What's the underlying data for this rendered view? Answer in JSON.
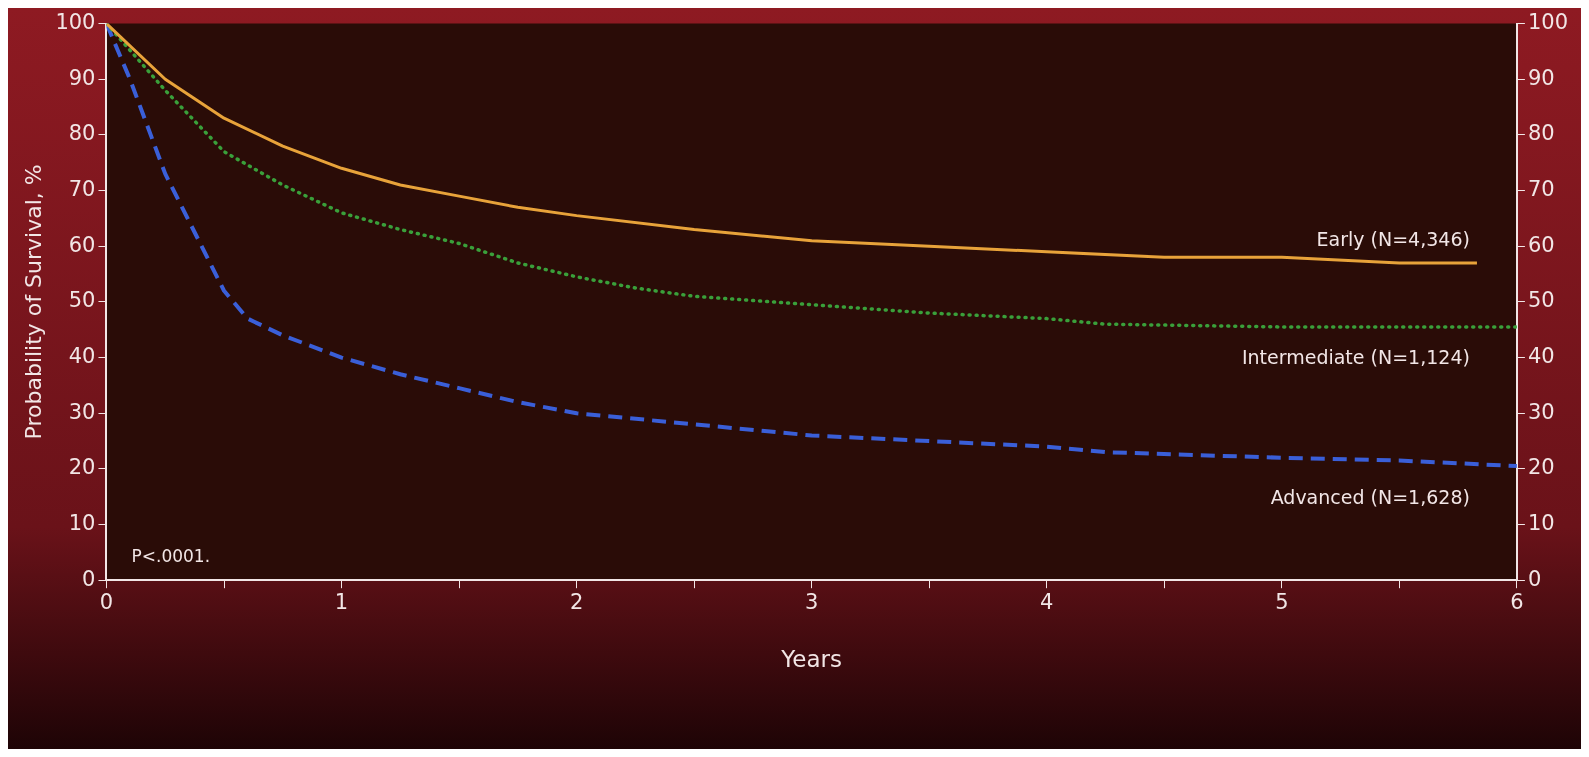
{
  "chart_data": {
    "type": "line",
    "xlabel": "Years",
    "ylabel": "Probability of Survival, %",
    "annotations": [
      "P<.0001."
    ],
    "xlim": [
      0,
      6
    ],
    "xticks": [
      0,
      {
        "value": 0.5,
        "label": null
      },
      1,
      {
        "value": 1.5,
        "label": null
      },
      2,
      {
        "value": 2.5,
        "label": null
      },
      3,
      {
        "value": 3.5,
        "label": null
      },
      4,
      {
        "value": 4.5,
        "label": null
      },
      5,
      {
        "value": 5.5,
        "label": null
      },
      6
    ],
    "ylim": [
      0,
      100
    ],
    "yticks": [
      0,
      10,
      20,
      30,
      40,
      50,
      60,
      70,
      80,
      90,
      100
    ],
    "y2lim": [
      0,
      100
    ],
    "y2ticks": [
      0,
      10,
      20,
      30,
      40,
      50,
      60,
      70,
      80,
      90,
      100
    ],
    "grid": false,
    "legend": false,
    "marker": "none",
    "series": [
      {
        "name": "Early (N=4,346)",
        "color": "#e8a33a",
        "line_style": "solid",
        "x": [
          0,
          0.25,
          0.5,
          0.75,
          1,
          1.25,
          1.5,
          1.75,
          2,
          2.5,
          3,
          3.5,
          4,
          4.5,
          5,
          5.5,
          5.83
        ],
        "values": [
          100,
          90,
          83,
          78,
          74,
          71,
          69,
          67,
          65.5,
          63,
          61,
          60,
          59,
          58,
          58,
          57,
          57
        ]
      },
      {
        "name": "Intermediate (N=1,124)",
        "color": "#3aa03a",
        "line_style": "dotted",
        "x": [
          0,
          0.25,
          0.5,
          0.75,
          1,
          1.25,
          1.5,
          1.75,
          2,
          2.25,
          2.5,
          3,
          3.5,
          4,
          4.25,
          5,
          6
        ],
        "values": [
          100,
          88,
          77,
          71,
          66,
          63,
          60.5,
          57,
          54.5,
          52.5,
          51,
          49.5,
          48,
          47,
          46,
          45.5,
          45.5
        ]
      },
      {
        "name": "Advanced (N=1,628)",
        "color": "#3a5fd8",
        "line_style": "dashed",
        "x": [
          0,
          0.1,
          0.25,
          0.5,
          0.6,
          0.75,
          1,
          1.25,
          1.5,
          1.75,
          2,
          2.5,
          3,
          3.5,
          4,
          4.25,
          5,
          5.5,
          6
        ],
        "values": [
          100,
          90,
          73,
          52,
          47,
          44,
          40,
          37,
          34.5,
          32,
          30,
          28,
          26,
          25,
          24,
          23,
          22,
          21.5,
          20.5
        ]
      }
    ]
  }
}
